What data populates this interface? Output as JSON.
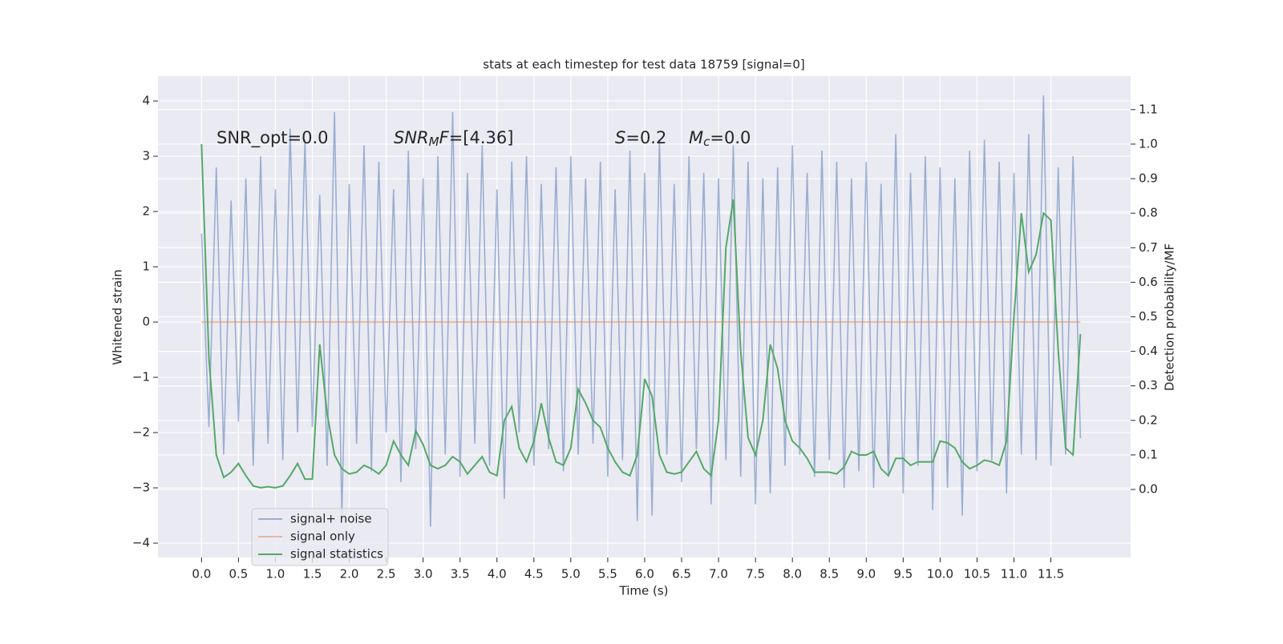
{
  "chart_data": {
    "type": "line",
    "title": "stats at each timestep for test data 18759 [signal=0]",
    "xlabel": "Time (s)",
    "ylabel": "Whitened strain",
    "y2label": "Detection probability/MF",
    "grid": true,
    "legend_position": "lower left",
    "xlim": [
      -0.59,
      12.58
    ],
    "ylim": [
      -4.26,
      4.45
    ],
    "y2lim": [
      -0.197,
      1.197
    ],
    "xticks": [
      {
        "value": 0,
        "label": "0.0"
      },
      0.5,
      {
        "value": 1,
        "label": "1.0"
      },
      1.5,
      {
        "value": 2,
        "label": "2.0"
      },
      2.5,
      {
        "value": 3,
        "label": "3.0"
      },
      3.5,
      {
        "value": 4,
        "label": "4.0"
      },
      4.5,
      {
        "value": 5,
        "label": "5.0"
      },
      5.5,
      {
        "value": 6,
        "label": "6.0"
      },
      6.5,
      {
        "value": 7,
        "label": "7.0"
      },
      7.5,
      {
        "value": 8,
        "label": "8.0"
      },
      8.5,
      {
        "value": 9,
        "label": "9.0"
      },
      9.5,
      {
        "value": 10,
        "label": "10.0"
      },
      10.5,
      {
        "value": 11,
        "label": "11.0"
      },
      11.5
    ],
    "yticks": [
      {
        "value": -4,
        "label": "−4"
      },
      {
        "value": -3,
        "label": "−3"
      },
      {
        "value": -2,
        "label": "−2"
      },
      {
        "value": -1,
        "label": "−1"
      },
      0,
      1,
      2,
      3,
      4
    ],
    "y2ticks": [
      {
        "value": 0,
        "label": "0.0"
      },
      0.1,
      0.2,
      0.3,
      0.4,
      0.5,
      0.6,
      0.7,
      0.8,
      0.9,
      {
        "value": 1,
        "label": "1.0"
      },
      1.1
    ],
    "annotations": [
      {
        "parts": [
          {
            "text": "SNR_opt=0.0",
            "style": "normal"
          }
        ]
      },
      {
        "parts": [
          {
            "text": "SNR",
            "style": "italic"
          },
          {
            "text": "M",
            "style": "sub"
          },
          {
            "text": "F",
            "style": "italic"
          },
          {
            "text": "=[4.36]",
            "style": "normal"
          }
        ]
      },
      {
        "parts": [
          {
            "text": "S",
            "style": "italic"
          },
          {
            "text": "=0.2",
            "style": "normal"
          }
        ]
      },
      {
        "parts": [
          {
            "text": "M",
            "style": "italic"
          },
          {
            "text": "c",
            "style": "sub"
          },
          {
            "text": "=0.0",
            "style": "normal"
          }
        ]
      }
    ],
    "x": [
      0,
      0.1,
      0.2,
      0.3,
      0.4,
      0.5,
      0.6,
      0.7,
      0.8,
      0.9,
      1,
      1.1,
      1.2,
      1.3,
      1.4,
      1.5,
      1.6,
      1.7,
      1.8,
      1.9,
      2,
      2.1,
      2.2,
      2.3,
      2.4,
      2.5,
      2.6,
      2.7,
      2.8,
      2.9,
      3,
      3.1,
      3.2,
      3.3,
      3.4,
      3.5,
      3.6,
      3.7,
      3.8,
      3.9,
      4,
      4.1,
      4.2,
      4.3,
      4.4,
      4.5,
      4.6,
      4.7,
      4.8,
      4.9,
      5,
      5.1,
      5.2,
      5.3,
      5.4,
      5.5,
      5.6,
      5.7,
      5.8,
      5.9,
      6,
      6.1,
      6.2,
      6.3,
      6.4,
      6.5,
      6.6,
      6.7,
      6.8,
      6.9,
      7,
      7.1,
      7.2,
      7.3,
      7.4,
      7.5,
      7.6,
      7.7,
      7.8,
      7.9,
      8,
      8.1,
      8.2,
      8.3,
      8.4,
      8.5,
      8.6,
      8.7,
      8.8,
      8.9,
      9,
      9.1,
      9.2,
      9.3,
      9.4,
      9.5,
      9.6,
      9.7,
      9.8,
      9.9,
      10,
      10.1,
      10.2,
      10.3,
      10.4,
      10.5,
      10.6,
      10.7,
      10.8,
      10.9,
      11,
      11.1,
      11.2,
      11.3,
      11.4,
      11.5,
      11.6,
      11.7,
      11.8,
      11.9
    ],
    "series": [
      {
        "name": "signal+ noise",
        "color": "#4c72b0",
        "opacity": 0.5,
        "axis": "y",
        "values": [
          1.6,
          -1.9,
          2.8,
          -2.4,
          2.2,
          -1.8,
          2.6,
          -2.6,
          3.0,
          -2.2,
          2.4,
          -2.5,
          3.5,
          -2.0,
          3.3,
          -1.9,
          2.3,
          -2.6,
          3.8,
          -3.5,
          2.5,
          -2.2,
          3.2,
          -2.7,
          2.9,
          -2.0,
          2.4,
          -2.9,
          3.1,
          -2.3,
          2.6,
          -3.7,
          3.0,
          -2.4,
          3.8,
          -2.8,
          2.7,
          -2.2,
          3.2,
          -2.6,
          2.4,
          -3.2,
          2.9,
          -2.0,
          3.0,
          -2.6,
          2.5,
          -2.3,
          2.8,
          -2.7,
          3.0,
          -2.4,
          2.6,
          -2.2,
          2.9,
          -2.8,
          2.4,
          -2.5,
          3.1,
          -3.6,
          2.7,
          -3.5,
          3.3,
          -2.4,
          2.5,
          -2.9,
          3.0,
          -2.3,
          2.7,
          -3.3,
          2.6,
          -2.5,
          3.2,
          -2.8,
          2.9,
          -3.3,
          2.6,
          -3.1,
          2.8,
          -2.6,
          3.2,
          -2.4,
          2.7,
          -2.8,
          3.1,
          -2.5,
          2.9,
          -3.0,
          2.6,
          -2.7,
          2.9,
          -3.0,
          2.5,
          -2.8,
          3.4,
          -3.1,
          2.7,
          -2.6,
          3.0,
          -3.4,
          2.8,
          -3.0,
          2.6,
          -3.5,
          3.1,
          -2.7,
          3.3,
          -2.5,
          2.9,
          -3.1,
          2.7,
          -2.4,
          3.4,
          -2.5,
          4.1,
          -2.6,
          2.8,
          -2.4,
          3.0,
          -2.1
        ]
      },
      {
        "name": "signal only",
        "color": "#dd8452",
        "opacity": 0.5,
        "axis": "y",
        "values": [
          0,
          0,
          0,
          0,
          0,
          0,
          0,
          0,
          0,
          0,
          0,
          0,
          0,
          0,
          0,
          0,
          0,
          0,
          0,
          0,
          0,
          0,
          0,
          0,
          0,
          0,
          0,
          0,
          0,
          0,
          0,
          0,
          0,
          0,
          0,
          0,
          0,
          0,
          0,
          0,
          0,
          0,
          0,
          0,
          0,
          0,
          0,
          0,
          0,
          0,
          0,
          0,
          0,
          0,
          0,
          0,
          0,
          0,
          0,
          0,
          0,
          0,
          0,
          0,
          0,
          0,
          0,
          0,
          0,
          0,
          0,
          0,
          0,
          0,
          0,
          0,
          0,
          0,
          0,
          0,
          0,
          0,
          0,
          0,
          0,
          0,
          0,
          0,
          0,
          0,
          0,
          0,
          0,
          0,
          0,
          0,
          0,
          0,
          0,
          0,
          0,
          0,
          0,
          0,
          0,
          0,
          0,
          0,
          0,
          0,
          0,
          0,
          0,
          0,
          0,
          0,
          0,
          0,
          0,
          0
        ]
      },
      {
        "name": "signal statistics",
        "color": "#55a868",
        "opacity": 1,
        "axis": "y2",
        "values": [
          1.0,
          0.38,
          0.1,
          0.035,
          0.05,
          0.075,
          0.04,
          0.01,
          0.005,
          0.008,
          0.005,
          0.01,
          0.04,
          0.075,
          0.03,
          0.03,
          0.42,
          0.22,
          0.1,
          0.06,
          0.045,
          0.05,
          0.07,
          0.06,
          0.045,
          0.07,
          0.14,
          0.1,
          0.07,
          0.17,
          0.13,
          0.07,
          0.06,
          0.07,
          0.095,
          0.08,
          0.045,
          0.07,
          0.095,
          0.05,
          0.04,
          0.2,
          0.24,
          0.12,
          0.08,
          0.14,
          0.25,
          0.15,
          0.08,
          0.07,
          0.12,
          0.29,
          0.25,
          0.2,
          0.18,
          0.12,
          0.08,
          0.05,
          0.04,
          0.1,
          0.32,
          0.27,
          0.1,
          0.05,
          0.045,
          0.05,
          0.08,
          0.11,
          0.06,
          0.04,
          0.2,
          0.7,
          0.84,
          0.4,
          0.15,
          0.1,
          0.2,
          0.42,
          0.35,
          0.2,
          0.14,
          0.12,
          0.09,
          0.05,
          0.05,
          0.05,
          0.045,
          0.065,
          0.11,
          0.1,
          0.1,
          0.11,
          0.06,
          0.04,
          0.09,
          0.09,
          0.07,
          0.08,
          0.08,
          0.08,
          0.14,
          0.135,
          0.12,
          0.08,
          0.06,
          0.07,
          0.085,
          0.08,
          0.07,
          0.14,
          0.5,
          0.8,
          0.63,
          0.68,
          0.8,
          0.78,
          0.4,
          0.12,
          0.1,
          0.45
        ]
      }
    ]
  }
}
